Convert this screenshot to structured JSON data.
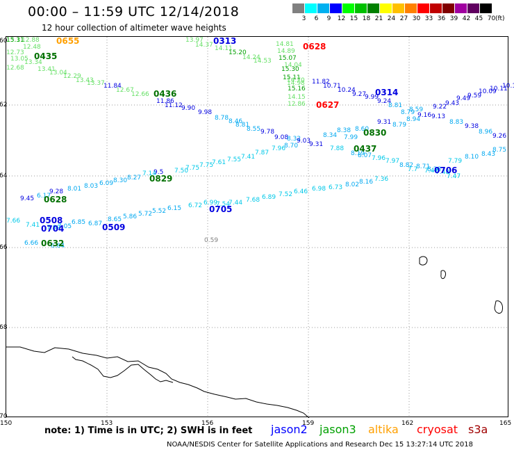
{
  "title": "00:00 – 11:59 UTC 12/14/2018",
  "subtitle": "12 hour collection of altimeter wave heights",
  "legend": {
    "unit": "(ft)",
    "bins": [
      {
        "label": "3",
        "color": "#808080"
      },
      {
        "label": "6",
        "color": "#00ffff"
      },
      {
        "label": "9",
        "color": "#00b0f0"
      },
      {
        "label": "12",
        "color": "#0000ff"
      },
      {
        "label": "15",
        "color": "#00ff00"
      },
      {
        "label": "18",
        "color": "#00c000"
      },
      {
        "label": "21",
        "color": "#008000"
      },
      {
        "label": "24",
        "color": "#ffff00"
      },
      {
        "label": "27",
        "color": "#ffc000"
      },
      {
        "label": "30",
        "color": "#ff8000"
      },
      {
        "label": "33",
        "color": "#ff0000"
      },
      {
        "label": "36",
        "color": "#c00000"
      },
      {
        "label": "39",
        "color": "#800000"
      },
      {
        "label": "42",
        "color": "#a000a0"
      },
      {
        "label": "45",
        "color": "#600060"
      },
      {
        "label": "70",
        "color": "#000000"
      }
    ]
  },
  "axes": {
    "lat_labels": [
      "60",
      "62",
      "64",
      "66",
      "68",
      "70"
    ],
    "lon_labels": [
      "150",
      "153",
      "156",
      "159",
      "162",
      "165"
    ]
  },
  "colors": {
    "gray": "#808080",
    "cyan": "#00c8e8",
    "ltblue": "#00a8f0",
    "blue": "#0000e0",
    "ltgreen": "#66e066",
    "green": "#00a000",
    "dkgreen": "#007000",
    "orange": "#ffa000",
    "red": "#ff0000"
  },
  "observations": [
    {
      "v": "12.88",
      "c": "ltgreen"
    },
    {
      "v": "12.48",
      "c": "ltgreen"
    },
    {
      "v": "12.73",
      "c": "ltgreen"
    },
    {
      "v": "13.05",
      "c": "ltgreen"
    },
    {
      "v": "13.34",
      "c": "ltgreen"
    },
    {
      "v": "12.68",
      "c": "ltgreen"
    },
    {
      "v": "13.41",
      "c": "ltgreen"
    },
    {
      "v": "13.04",
      "c": "ltgreen"
    },
    {
      "v": "12.29",
      "c": "ltgreen"
    },
    {
      "v": "13.43",
      "c": "ltgreen"
    },
    {
      "v": "13.37",
      "c": "ltgreen"
    },
    {
      "v": "11.84",
      "c": "blue"
    },
    {
      "v": "12.67",
      "c": "ltgreen"
    },
    {
      "v": "12.66",
      "c": "ltgreen"
    },
    {
      "v": "11.86",
      "c": "blue"
    },
    {
      "v": "11.12",
      "c": "blue"
    },
    {
      "v": "9.90",
      "c": "blue"
    },
    {
      "v": "9.98",
      "c": "blue"
    },
    {
      "v": "13.97",
      "c": "ltgreen"
    },
    {
      "v": "14.37",
      "c": "ltgreen"
    },
    {
      "v": "14.11",
      "c": "ltgreen"
    },
    {
      "v": "15.20",
      "c": "green"
    },
    {
      "v": "14.24",
      "c": "ltgreen"
    },
    {
      "v": "14.53",
      "c": "ltgreen"
    },
    {
      "v": "14.81",
      "c": "ltgreen"
    },
    {
      "v": "14.89",
      "c": "ltgreen"
    },
    {
      "v": "15.07",
      "c": "green"
    },
    {
      "v": "14.04",
      "c": "ltgreen"
    },
    {
      "v": "15.30",
      "c": "green"
    },
    {
      "v": "15.11",
      "c": "green"
    },
    {
      "v": "14.98",
      "c": "ltgreen"
    },
    {
      "v": "14.70",
      "c": "ltgreen"
    },
    {
      "v": "15.16",
      "c": "green"
    },
    {
      "v": "14.15",
      "c": "ltgreen"
    },
    {
      "v": "12.86",
      "c": "ltgreen"
    },
    {
      "v": "11.82",
      "c": "blue"
    },
    {
      "v": "10.71",
      "c": "blue"
    },
    {
      "v": "10.24",
      "c": "blue"
    },
    {
      "v": "9.27",
      "c": "blue"
    },
    {
      "v": "9.99",
      "c": "blue"
    },
    {
      "v": "9.24",
      "c": "blue"
    },
    {
      "v": "8.81",
      "c": "ltblue"
    },
    {
      "v": "8.79",
      "c": "ltblue"
    },
    {
      "v": "8.59",
      "c": "ltblue"
    },
    {
      "v": "9.16",
      "c": "blue"
    },
    {
      "v": "9.22",
      "c": "blue"
    },
    {
      "v": "9.43",
      "c": "blue"
    },
    {
      "v": "9.49",
      "c": "blue"
    },
    {
      "v": "9.59",
      "c": "blue"
    },
    {
      "v": "10.09",
      "c": "blue"
    },
    {
      "v": "10.11",
      "c": "blue"
    },
    {
      "v": "10.17",
      "c": "blue"
    },
    {
      "v": "8.78",
      "c": "ltblue"
    },
    {
      "v": "8.46",
      "c": "ltblue"
    },
    {
      "v": "8.81",
      "c": "ltblue"
    },
    {
      "v": "8.55",
      "c": "ltblue"
    },
    {
      "v": "9.78",
      "c": "blue"
    },
    {
      "v": "9.08",
      "c": "blue"
    },
    {
      "v": "8.32",
      "c": "ltblue"
    },
    {
      "v": "8.70",
      "c": "ltblue"
    },
    {
      "v": "9.03",
      "c": "blue"
    },
    {
      "v": "9.31",
      "c": "blue"
    },
    {
      "v": "8.34",
      "c": "ltblue"
    },
    {
      "v": "8.38",
      "c": "ltblue"
    },
    {
      "v": "7.99",
      "c": "ltblue"
    },
    {
      "v": "8.60",
      "c": "ltblue"
    },
    {
      "v": "9.31",
      "c": "blue"
    },
    {
      "v": "8.79",
      "c": "ltblue"
    },
    {
      "v": "8.94",
      "c": "ltblue"
    },
    {
      "v": "9.13",
      "c": "blue"
    },
    {
      "v": "8.83",
      "c": "ltblue"
    },
    {
      "v": "9.38",
      "c": "blue"
    },
    {
      "v": "8.96",
      "c": "ltblue"
    },
    {
      "v": "9.26",
      "c": "blue"
    },
    {
      "v": "9.5",
      "c": "blue"
    },
    {
      "v": "7.50",
      "c": "cyan"
    },
    {
      "v": "7.75",
      "c": "cyan"
    },
    {
      "v": "7.75",
      "c": "cyan"
    },
    {
      "v": "7.61",
      "c": "cyan"
    },
    {
      "v": "7.55",
      "c": "cyan"
    },
    {
      "v": "7.41",
      "c": "cyan"
    },
    {
      "v": "7.87",
      "c": "cyan"
    },
    {
      "v": "7.96",
      "c": "cyan"
    },
    {
      "v": "7.88",
      "c": "cyan"
    },
    {
      "v": "8.19",
      "c": "ltblue"
    },
    {
      "v": "8.07",
      "c": "ltblue"
    },
    {
      "v": "7.96",
      "c": "cyan"
    },
    {
      "v": "7.97",
      "c": "cyan"
    },
    {
      "v": "8.82",
      "c": "ltblue"
    },
    {
      "v": "8.71",
      "c": "ltblue"
    },
    {
      "v": "8.38",
      "c": "ltblue"
    },
    {
      "v": "7.79",
      "c": "cyan"
    },
    {
      "v": "8.10",
      "c": "ltblue"
    },
    {
      "v": "8.43",
      "c": "ltblue"
    },
    {
      "v": "8.75",
      "c": "ltblue"
    },
    {
      "v": "9.45",
      "c": "blue"
    },
    {
      "v": "6.17",
      "c": "ltblue"
    },
    {
      "v": "9.28",
      "c": "blue"
    },
    {
      "v": "8.01",
      "c": "ltblue"
    },
    {
      "v": "8.03",
      "c": "ltblue"
    },
    {
      "v": "6.09",
      "c": "ltblue"
    },
    {
      "v": "8.30",
      "c": "ltblue"
    },
    {
      "v": "8.27",
      "c": "ltblue"
    },
    {
      "v": "7.14",
      "c": "cyan"
    },
    {
      "v": "7.7",
      "c": "cyan"
    },
    {
      "v": "7.47",
      "c": "cyan"
    },
    {
      "v": "7.48",
      "c": "cyan"
    },
    {
      "v": "7.47",
      "c": "cyan"
    },
    {
      "v": "7.66",
      "c": "cyan"
    },
    {
      "v": "8.65",
      "c": "ltblue"
    },
    {
      "v": "5.86",
      "c": "ltblue"
    },
    {
      "v": "5.72",
      "c": "ltblue"
    },
    {
      "v": "5.52",
      "c": "ltblue"
    },
    {
      "v": "6.15",
      "c": "ltblue"
    },
    {
      "v": "6.72",
      "c": "cyan"
    },
    {
      "v": "6.99",
      "c": "cyan"
    },
    {
      "v": "7.54",
      "c": "cyan"
    },
    {
      "v": "7.44",
      "c": "cyan"
    },
    {
      "v": "7.68",
      "c": "cyan"
    },
    {
      "v": "6.89",
      "c": "cyan"
    },
    {
      "v": "7.52",
      "c": "cyan"
    },
    {
      "v": "6.46",
      "c": "cyan"
    },
    {
      "v": "6.98",
      "c": "cyan"
    },
    {
      "v": "6.73",
      "c": "cyan"
    },
    {
      "v": "8.02",
      "c": "ltblue"
    },
    {
      "v": "8.16",
      "c": "ltblue"
    },
    {
      "v": "7.36",
      "c": "cyan"
    },
    {
      "v": "7.41",
      "c": "cyan"
    },
    {
      "v": "7.89",
      "c": "cyan"
    },
    {
      "v": "7.05",
      "c": "ltblue"
    },
    {
      "v": "6.85",
      "c": "ltblue"
    },
    {
      "v": "6.87",
      "c": "ltblue"
    },
    {
      "v": "6.66",
      "c": "ltblue"
    },
    {
      "v": "6.84",
      "c": "ltblue"
    },
    {
      "v": "0.59",
      "c": "gray"
    },
    {
      "v": "13.11",
      "c": "ltgreen"
    },
    {
      "v": "15.31",
      "c": "green"
    }
  ],
  "passes": [
    {
      "label": "0655",
      "c": "orange"
    },
    {
      "label": "0313",
      "c": "blue"
    },
    {
      "label": "0628",
      "c": "red"
    },
    {
      "label": "0435",
      "c": "dkgreen"
    },
    {
      "label": "0436",
      "c": "dkgreen"
    },
    {
      "label": "0627",
      "c": "red"
    },
    {
      "label": "0314",
      "c": "blue"
    },
    {
      "label": "0830",
      "c": "dkgreen"
    },
    {
      "label": "0437",
      "c": "dkgreen"
    },
    {
      "label": "0829",
      "c": "dkgreen"
    },
    {
      "label": "0706",
      "c": "blue"
    },
    {
      "label": "0628",
      "c": "dkgreen"
    },
    {
      "label": "0508",
      "c": "blue"
    },
    {
      "label": "0704",
      "c": "blue"
    },
    {
      "label": "0509",
      "c": "blue"
    },
    {
      "label": "0705",
      "c": "blue"
    },
    {
      "label": "0632",
      "c": "dkgreen"
    }
  ],
  "note": "note: 1) Time is in UTC; 2) SWH is in feet",
  "satellites": [
    {
      "name": "jason2",
      "color": "#0000ff"
    },
    {
      "name": "jason3",
      "color": "#00a000"
    },
    {
      "name": "altika",
      "color": "#ffa000"
    },
    {
      "name": "cryosat",
      "color": "#ff0000"
    },
    {
      "name": "s3a",
      "color": "#a00000"
    }
  ],
  "credit": "NOAA/NESDIS Center for Satellite Applications and Research    Dec 15 13:27:14 UTC 2018"
}
